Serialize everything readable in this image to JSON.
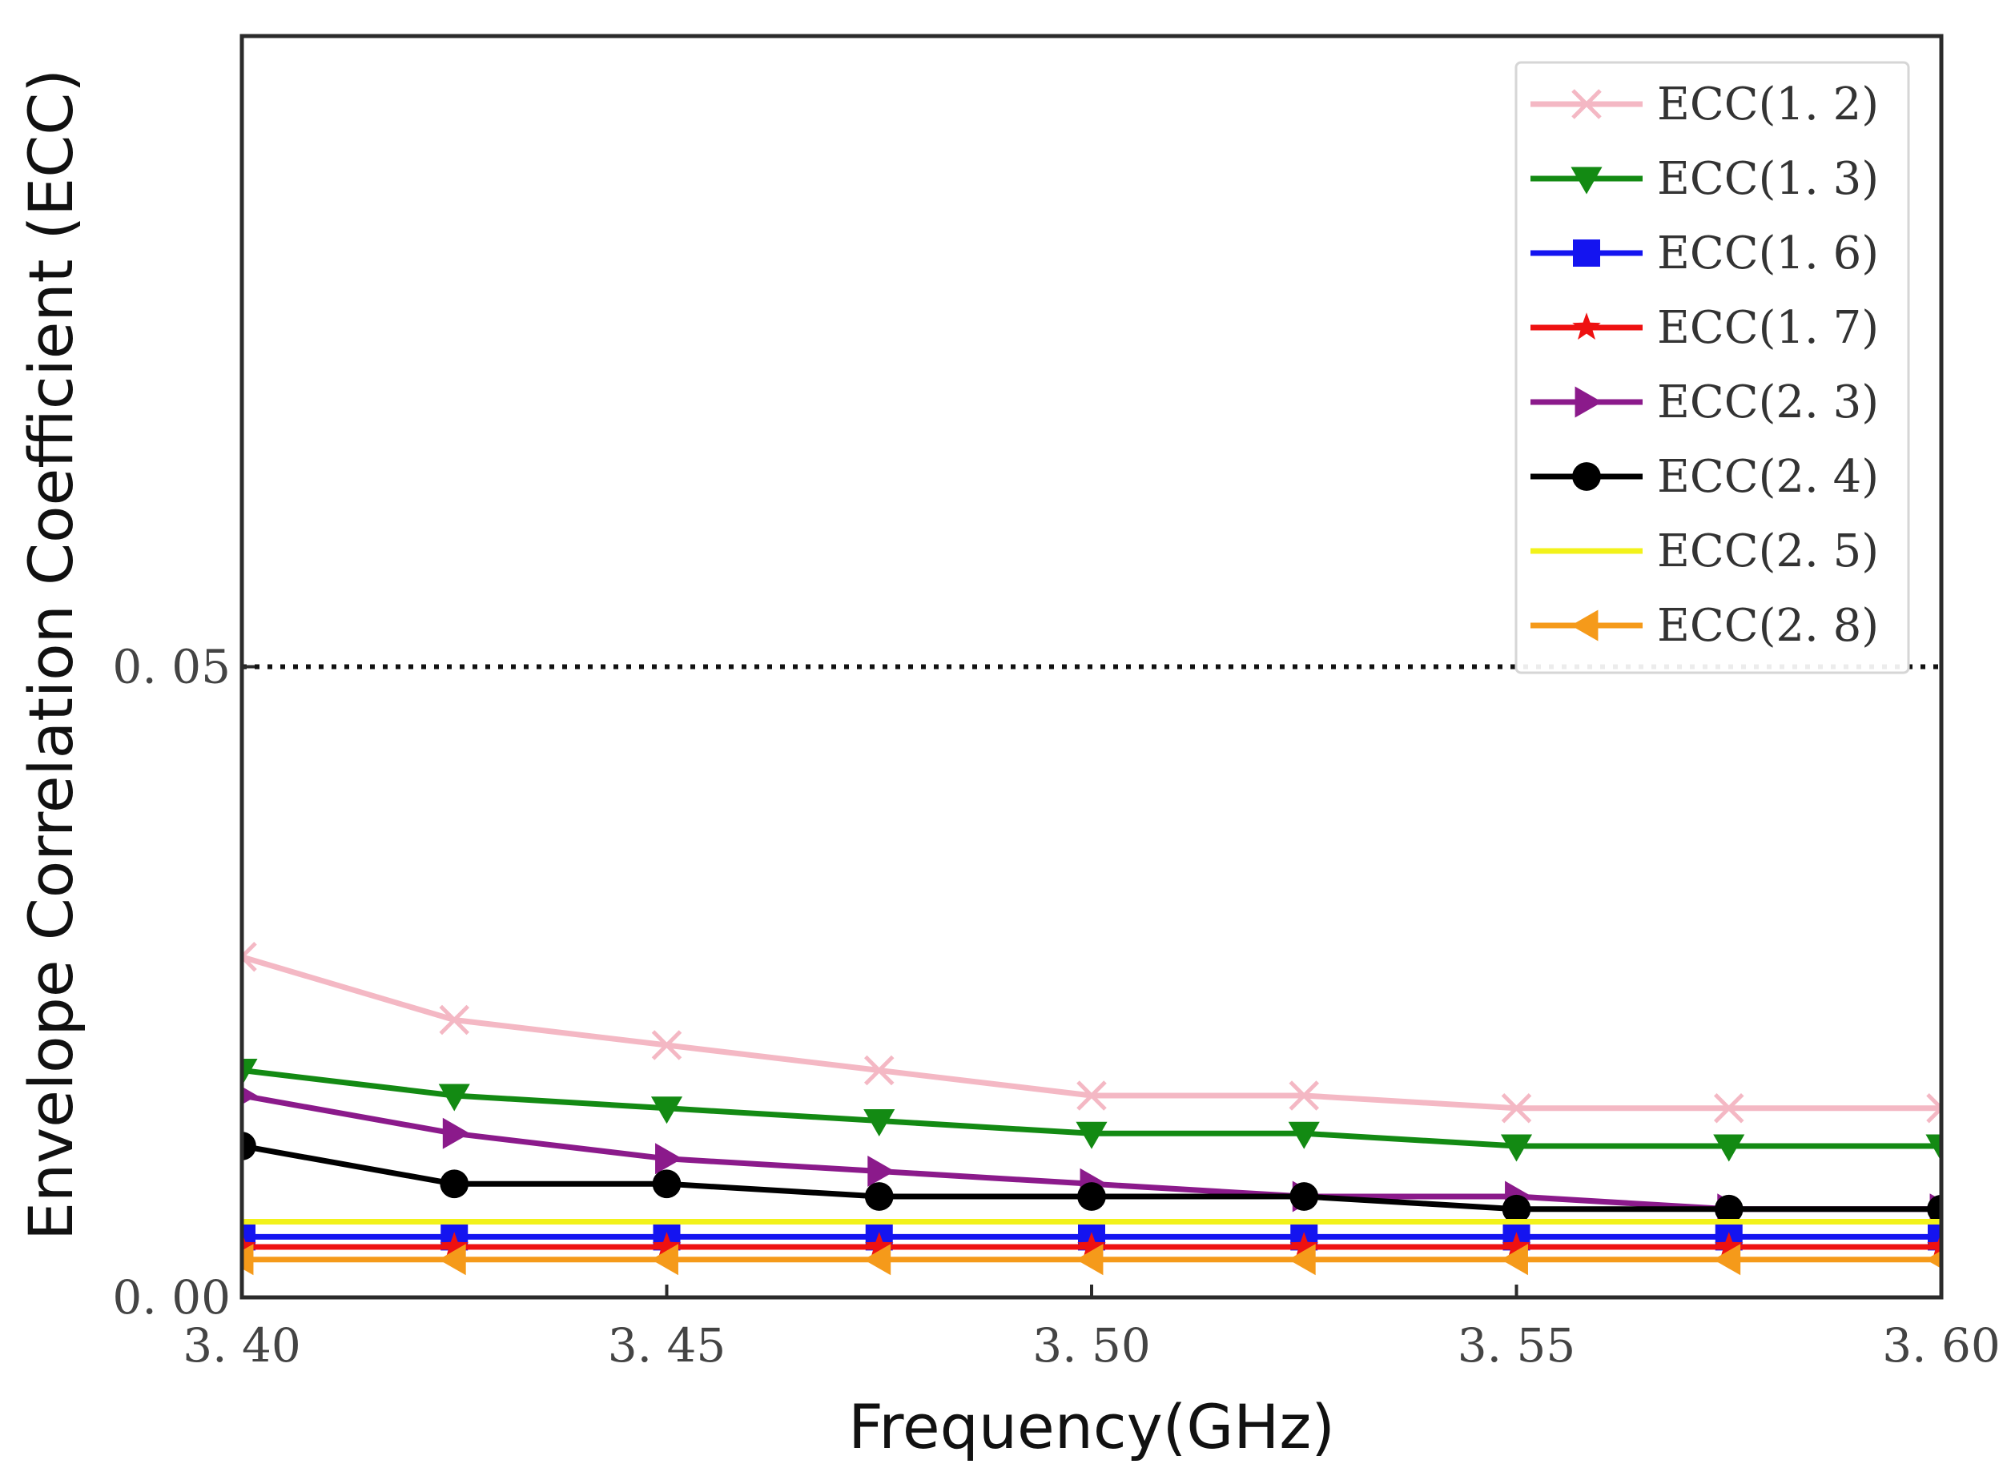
{
  "chart_data": {
    "type": "line",
    "title": "",
    "xlabel": "Frequency(GHz)",
    "ylabel": "Envelope Correlation Coefficient (ECC)",
    "xlim": [
      3.4,
      3.6
    ],
    "ylim": [
      0.0,
      0.1
    ],
    "x_ticks": [
      3.4,
      3.45,
      3.5,
      3.55,
      3.6
    ],
    "x_tick_labels": [
      "3. 40",
      "3. 45",
      "3. 50",
      "3. 55",
      "3. 60"
    ],
    "y_ticks": [
      0.0,
      0.05
    ],
    "y_tick_labels": [
      "0. 00",
      "0. 05"
    ],
    "grid": false,
    "legend_position": "top-right",
    "x": [
      3.4,
      3.425,
      3.45,
      3.475,
      3.5,
      3.525,
      3.55,
      3.575,
      3.6
    ],
    "reference_line": {
      "y": 0.05,
      "style": "dotted",
      "color": "#000000"
    },
    "series": [
      {
        "name": "ECC(1. 2)",
        "color": "#f4b8c4",
        "marker": "x",
        "values": [
          0.027,
          0.022,
          0.02,
          0.018,
          0.016,
          0.016,
          0.015,
          0.015,
          0.015
        ]
      },
      {
        "name": "ECC(1. 3)",
        "color": "#138a13",
        "marker": "triangle-down",
        "values": [
          0.018,
          0.016,
          0.015,
          0.014,
          0.013,
          0.013,
          0.012,
          0.012,
          0.012
        ]
      },
      {
        "name": "ECC(1. 6)",
        "color": "#1414f0",
        "marker": "square",
        "values": [
          0.0048,
          0.0048,
          0.0048,
          0.0048,
          0.0048,
          0.0048,
          0.0048,
          0.0048,
          0.0048
        ]
      },
      {
        "name": "ECC(1. 7)",
        "color": "#ee1111",
        "marker": "star",
        "values": [
          0.004,
          0.004,
          0.004,
          0.004,
          0.004,
          0.004,
          0.004,
          0.004,
          0.004
        ]
      },
      {
        "name": "ECC(2. 3)",
        "color": "#8b1a8b",
        "marker": "triangle-right",
        "values": [
          0.016,
          0.013,
          0.011,
          0.01,
          0.009,
          0.008,
          0.008,
          0.007,
          0.007
        ]
      },
      {
        "name": "ECC(2. 4)",
        "color": "#000000",
        "marker": "circle",
        "values": [
          0.012,
          0.009,
          0.009,
          0.008,
          0.008,
          0.008,
          0.007,
          0.007,
          0.007
        ]
      },
      {
        "name": "ECC(2. 5)",
        "color": "#f2f21a",
        "marker": "none",
        "values": [
          0.006,
          0.006,
          0.006,
          0.006,
          0.006,
          0.006,
          0.006,
          0.006,
          0.006
        ]
      },
      {
        "name": "ECC(2. 8)",
        "color": "#f59a1a",
        "marker": "triangle-left",
        "values": [
          0.003,
          0.003,
          0.003,
          0.003,
          0.003,
          0.003,
          0.003,
          0.003,
          0.003
        ]
      }
    ]
  }
}
